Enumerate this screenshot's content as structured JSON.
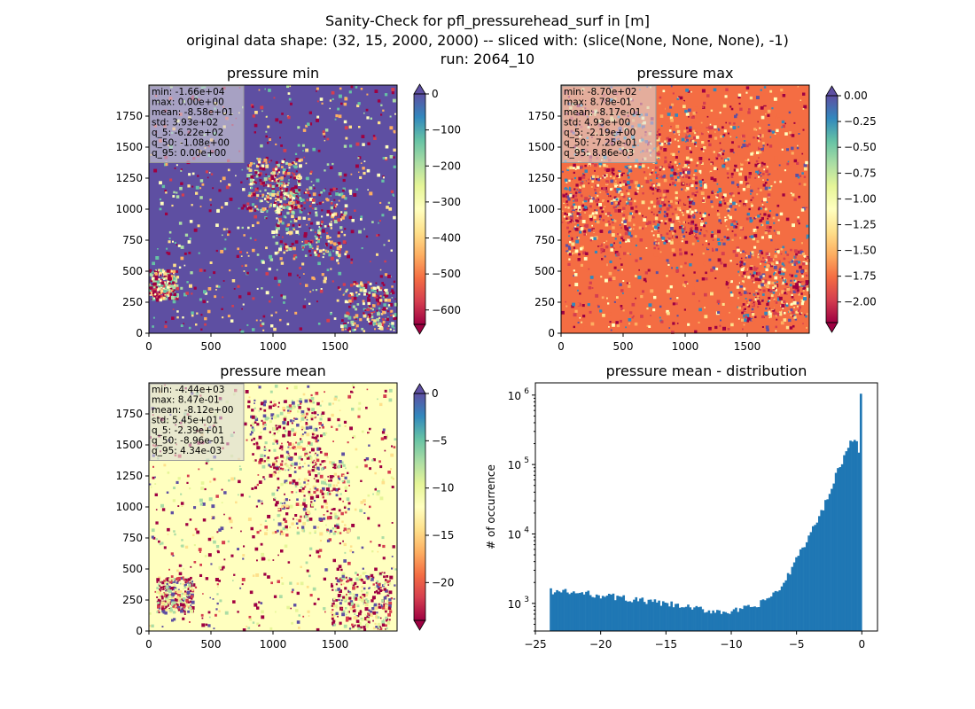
{
  "figure": {
    "title_lines": [
      "Sanity-Check for pfl_pressurehead_surf in [m]",
      "original data shape: (32, 15, 2000, 2000) -- sliced with: (slice(None, None, None), -1)",
      "run: 2064_10"
    ]
  },
  "colors": {
    "spectral": [
      "#9e0142",
      "#d53e4f",
      "#f46d43",
      "#fdae61",
      "#fee08b",
      "#ffffbf",
      "#e6f598",
      "#abdda4",
      "#66c2a5",
      "#3288bd",
      "#5e4fa2"
    ],
    "hist_bar": "#1f77b4"
  },
  "chart_data": [
    {
      "type": "heatmap",
      "title": "pressure min",
      "x_ticks": [
        "0",
        "500",
        "1000",
        "1500"
      ],
      "y_ticks": [
        "0",
        "250",
        "500",
        "750",
        "1000",
        "1250",
        "1500",
        "1750"
      ],
      "extent": [
        0,
        2000
      ],
      "colorbar": {
        "vmin": -640,
        "vmax": 0,
        "ticks": [
          "0",
          "−100",
          "−200",
          "−300",
          "−400",
          "−500",
          "−600"
        ],
        "tick_values": [
          0,
          -100,
          -200,
          -300,
          -400,
          -500,
          -600
        ],
        "extend": "both"
      },
      "stats": [
        "min: -1.66e+04",
        "max: 0.00e+00",
        "mean: -8.58e+01",
        "std: 3.93e+02",
        "q_5: -6.22e+02",
        "q_50: -1.08e+00",
        "q_95: 0.00e+00"
      ]
    },
    {
      "type": "heatmap",
      "title": "pressure max",
      "x_ticks": [
        "0",
        "500",
        "1000",
        "1500"
      ],
      "y_ticks": [
        "0",
        "250",
        "500",
        "750",
        "1000",
        "1250",
        "1500",
        "1750"
      ],
      "extent": [
        0,
        2000
      ],
      "colorbar": {
        "vmin": -2.2,
        "vmax": 0.0,
        "ticks": [
          "0.00",
          "−0.25",
          "−0.50",
          "−0.75",
          "−1.00",
          "−1.25",
          "−1.50",
          "−1.75",
          "−2.00"
        ],
        "tick_values": [
          0,
          -0.25,
          -0.5,
          -0.75,
          -1.0,
          -1.25,
          -1.5,
          -1.75,
          -2.0
        ],
        "extend": "both"
      },
      "stats": [
        "min: -8.70e+02",
        "max: 8.78e-01",
        "mean: -8.17e-01",
        "std: 4.93e+00",
        "q_5: -2.19e+00",
        "q_50: -7.25e-01",
        "q_95: 8.86e-03"
      ]
    },
    {
      "type": "heatmap",
      "title": "pressure mean",
      "x_ticks": [
        "0",
        "500",
        "1000",
        "1500"
      ],
      "y_ticks": [
        "0",
        "250",
        "500",
        "750",
        "1000",
        "1250",
        "1500",
        "1750"
      ],
      "extent": [
        0,
        2000
      ],
      "colorbar": {
        "vmin": -24,
        "vmax": 0,
        "ticks": [
          "0",
          "−5",
          "−10",
          "−15",
          "−20"
        ],
        "tick_values": [
          0,
          -5,
          -10,
          -15,
          -20
        ],
        "extend": "both"
      },
      "stats": [
        "min: -4.44e+03",
        "max: 8.47e-01",
        "mean: -8.12e+00",
        "std: 5.45e+01",
        "q_5: -2.39e+01",
        "q_50: -8.96e-01",
        "q_95: 4.34e-03"
      ]
    },
    {
      "type": "bar",
      "title": "pressure mean - distribution",
      "ylabel": "# of occurrence",
      "xlabel": "",
      "yscale": "log",
      "xlim": [
        -25,
        1.2
      ],
      "ylim": [
        400,
        1500000
      ],
      "x_ticks": [
        "−25",
        "−20",
        "−15",
        "−10",
        "−5",
        "0"
      ],
      "x_tick_values": [
        -25,
        -20,
        -15,
        -10,
        -5,
        0
      ],
      "y_ticks": [
        "10",
        "10",
        "10",
        "10"
      ],
      "y_tick_exponents": [
        "3",
        "4",
        "5",
        "6"
      ],
      "y_tick_values": [
        1000,
        10000,
        100000,
        1000000
      ],
      "bins": {
        "start": -23.9,
        "end": 0.0,
        "count": 150
      },
      "profile_x": [
        -23.9,
        -20,
        -15,
        -12,
        -10,
        -8,
        -6,
        -5,
        -4,
        -3,
        -2,
        -1,
        -0.6,
        -0.2,
        0.0
      ],
      "profile_log10": [
        3.18,
        3.12,
        2.99,
        2.9,
        2.88,
        2.96,
        3.25,
        3.65,
        3.98,
        4.35,
        4.85,
        5.25,
        5.4,
        5.2,
        6.02
      ]
    }
  ]
}
